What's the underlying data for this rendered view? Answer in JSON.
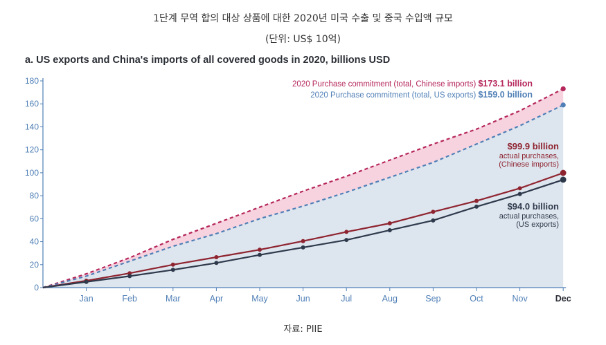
{
  "header": {
    "title": "1단계 무역 합의 대상 상품에 대한 2020년 미국 수출 및 중국 수입액 규모",
    "unit_note": "(단위: US$ 10억)"
  },
  "source": "자료: PIIE",
  "chart_data": {
    "type": "line",
    "title": "a. US exports and China's imports of all covered goods in 2020, billions USD",
    "x": [
      "",
      "Jan",
      "Feb",
      "Mar",
      "Apr",
      "May",
      "Jun",
      "Jul",
      "Aug",
      "Sep",
      "Oct",
      "Nov",
      "Dec"
    ],
    "y_ticks": [
      0,
      20,
      40,
      60,
      80,
      100,
      120,
      140,
      160,
      180
    ],
    "ylim": [
      0,
      180
    ],
    "grid": false,
    "series": [
      {
        "name": "2020 Purchase commitment (total, Chinese imports)",
        "style": "dashed",
        "color": "#b5265a",
        "values": [
          0,
          12,
          26,
          42,
          56,
          70,
          84,
          97,
          111,
          125,
          138,
          154,
          173.1
        ]
      },
      {
        "name": "2020 Purchase commitment (total, US exports)",
        "style": "dashed",
        "color": "#4f7fb6",
        "values": [
          0,
          10,
          23,
          36,
          47,
          60,
          71,
          83,
          96,
          109,
          125,
          141,
          159.0
        ]
      },
      {
        "name": "actual purchases, (Chinese imports)",
        "style": "solid",
        "color": "#8e2430",
        "values": [
          0,
          6,
          12.5,
          20,
          26.5,
          33,
          40.5,
          48.5,
          56,
          66,
          75.5,
          86.5,
          99.9
        ]
      },
      {
        "name": "actual purchases, (US exports)",
        "style": "solid",
        "color": "#2e3a4c",
        "values": [
          0,
          5,
          10,
          15.5,
          21.5,
          28.5,
          35,
          41.5,
          50,
          58.5,
          70.5,
          81.5,
          94.0
        ]
      }
    ],
    "annotations": {
      "commit_cn": {
        "prefix": "2020 Purchase commitment (total, Chinese imports) ",
        "value": "$173.1 billion"
      },
      "commit_us": {
        "prefix": "2020 Purchase commitment (total, US exports) ",
        "value": "$159.0 billion"
      },
      "actual_cn": {
        "value": "$99.9 billion",
        "line1": "actual purchases,",
        "line2": "(Chinese imports)"
      },
      "actual_us": {
        "value": "$94.0 billion",
        "line1": "actual purchases,",
        "line2": "(US exports)"
      }
    },
    "bold_x_label": "Dec",
    "colors": {
      "pink_fill": "#f7d3df",
      "blue_fill": "#dde5ee",
      "axis": "#4f7fb6",
      "tick_text": "#4f7fb6"
    }
  }
}
